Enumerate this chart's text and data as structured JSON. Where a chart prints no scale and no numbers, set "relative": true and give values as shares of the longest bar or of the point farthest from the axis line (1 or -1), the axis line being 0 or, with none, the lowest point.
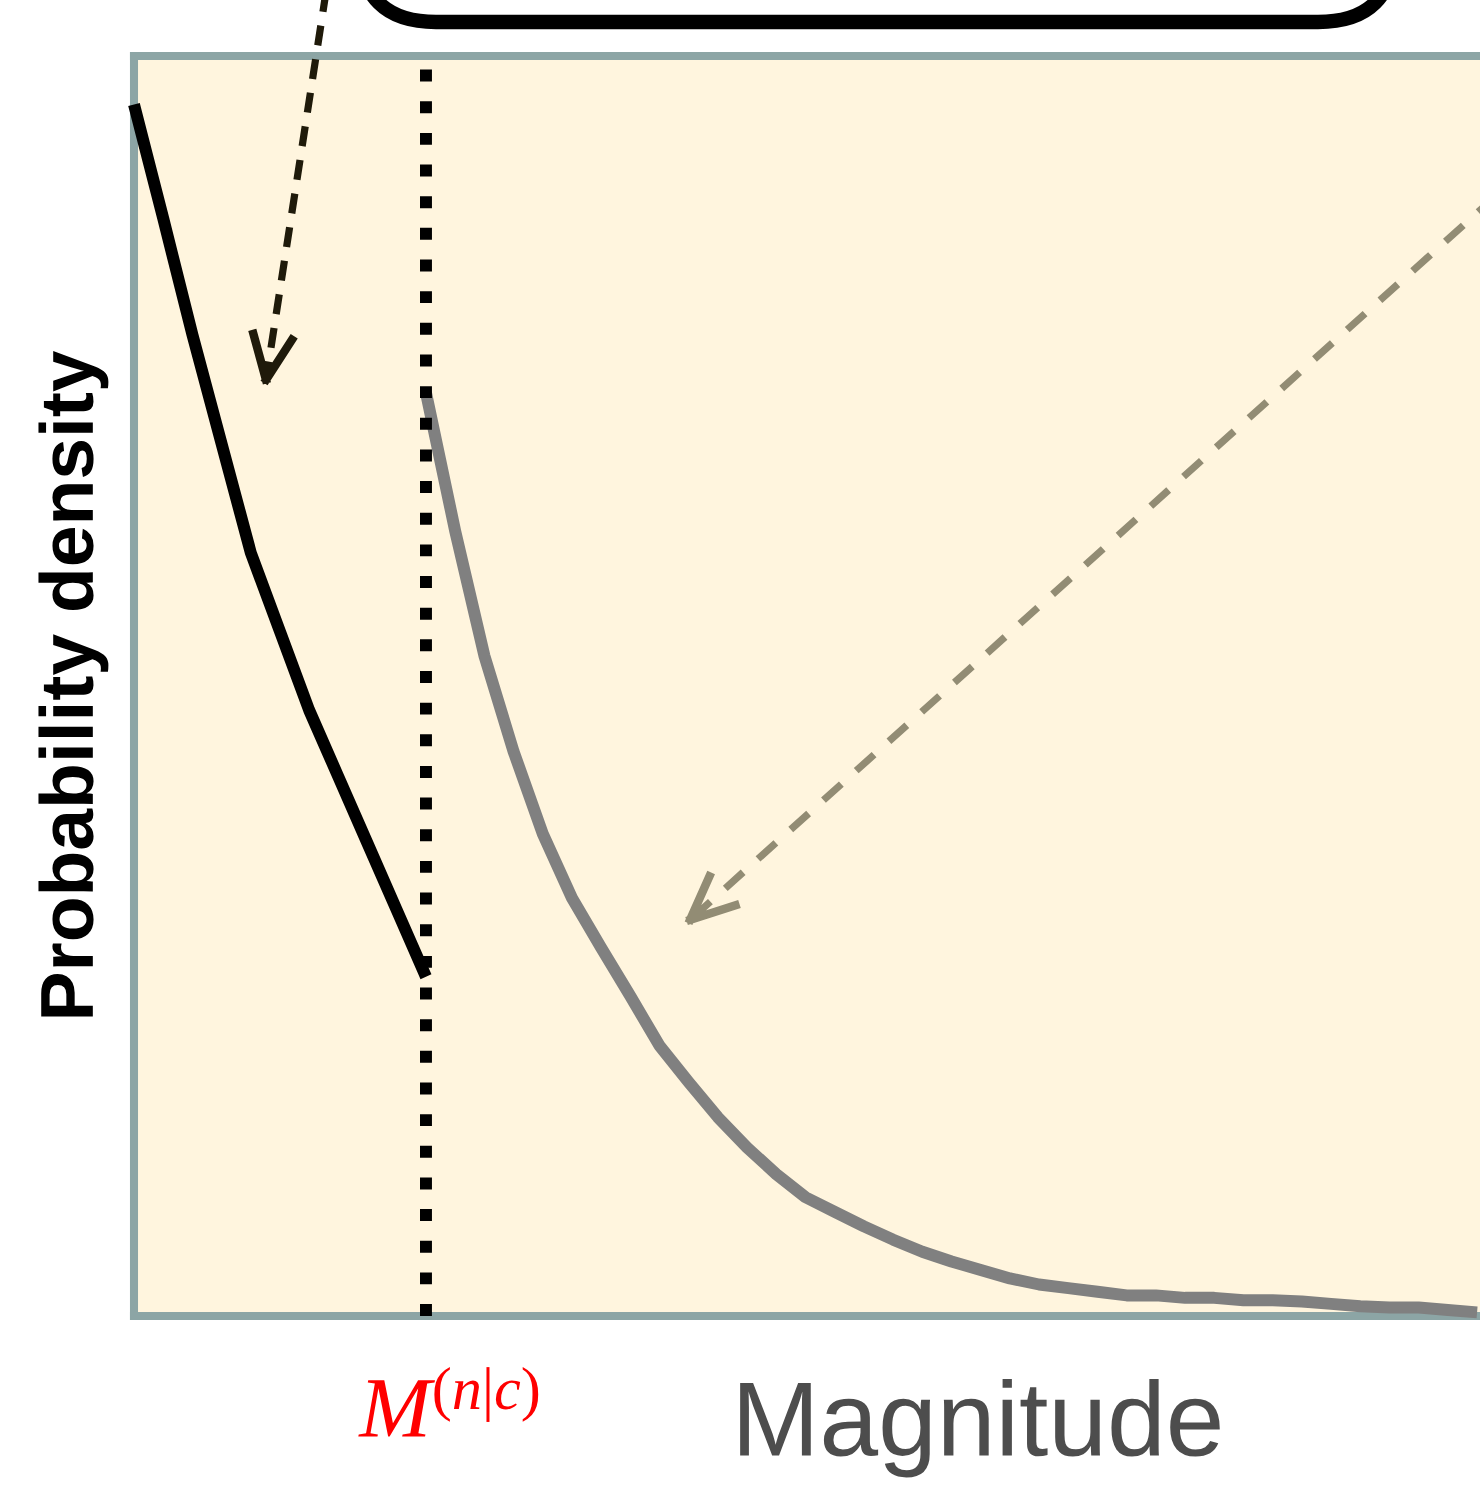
{
  "chart_data": {
    "type": "line",
    "relative": true,
    "xlabel": "Magnitude",
    "ylabel": "Probability density",
    "grid": false,
    "categories": [
      null,
      null,
      null,
      null,
      null,
      null,
      null,
      null,
      null,
      null,
      null,
      null,
      null,
      null,
      null,
      null,
      null,
      null,
      null,
      null,
      null,
      null,
      null,
      null,
      null,
      null,
      null,
      null,
      null,
      null,
      null,
      null,
      null,
      null,
      null,
      null,
      null,
      null,
      null,
      null,
      null,
      null,
      null,
      null,
      null,
      null,
      null
    ],
    "series": [
      {
        "color": "#000000",
        "values": [
          1.0,
          0.906,
          0.81,
          0.72,
          0.63,
          0.565,
          0.5,
          0.445,
          0.39,
          0.335,
          0.28,
          null,
          null,
          null,
          null,
          null,
          null,
          null,
          null,
          null,
          null,
          null,
          null,
          null,
          null,
          null,
          null,
          null,
          null,
          null,
          null,
          null,
          null,
          null,
          null,
          null,
          null,
          null,
          null,
          null,
          null,
          null,
          null,
          null,
          null,
          null,
          null
        ]
      },
      {
        "color": "#808080",
        "values": [
          null,
          null,
          null,
          null,
          null,
          null,
          null,
          null,
          null,
          null,
          0.762,
          0.648,
          0.545,
          0.466,
          0.398,
          0.345,
          0.304,
          0.264,
          0.223,
          0.193,
          0.164,
          0.139,
          0.117,
          0.098,
          0.086,
          0.074,
          0.063,
          0.053,
          0.045,
          0.038,
          0.031,
          0.026,
          0.023,
          0.02,
          0.017,
          0.017,
          0.015,
          0.015,
          0.013,
          0.013,
          0.012,
          0.01,
          0.008,
          0.007,
          0.007,
          0.005,
          0.003
        ]
      }
    ],
    "annotations": [
      "M$^{(n|c)}$"
    ]
  }
}
